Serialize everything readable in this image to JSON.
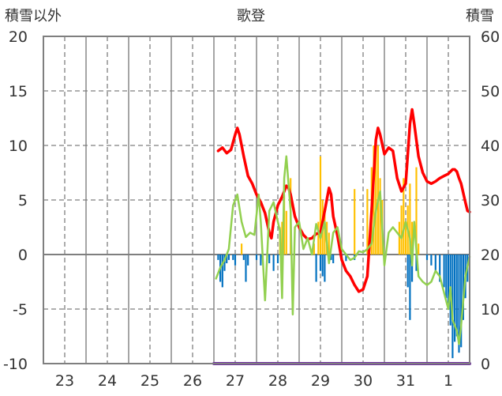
{
  "chart_data": {
    "type": "line",
    "title": "歌登",
    "ylabel_left": "積雪以外",
    "ylabel_right": "積雪",
    "ylim_left": [
      -10,
      20
    ],
    "ylim_right": [
      0,
      60
    ],
    "yticks_left": [
      "20",
      "15",
      "10",
      "5",
      "0",
      "-5",
      "-10"
    ],
    "yticks_right": [
      "60",
      "50",
      "40",
      "30",
      "20",
      "10",
      "0"
    ],
    "x_range": [
      0,
      10
    ],
    "day_ticks": [
      {
        "label": "23",
        "x": 0.5
      },
      {
        "label": "24",
        "x": 1.5
      },
      {
        "label": "25",
        "x": 2.5
      },
      {
        "label": "26",
        "x": 3.5
      },
      {
        "label": "27",
        "x": 4.5
      },
      {
        "label": "28",
        "x": 5.5
      },
      {
        "label": "29",
        "x": 6.5
      },
      {
        "label": "30",
        "x": 7.5
      },
      {
        "label": "31",
        "x": 8.5
      },
      {
        "label": "1",
        "x": 9.5
      }
    ],
    "solid_gridlines_x": [
      1,
      2,
      3,
      4,
      5,
      6,
      7,
      8,
      9
    ],
    "dashed_gridlines_x": [
      0.5,
      1.5,
      2.5,
      3.5,
      4.5,
      5.5,
      6.5,
      7.5,
      8.5,
      9.5
    ],
    "dashed_gridlines_y": [
      15,
      10,
      5,
      -5
    ],
    "colors": {
      "frame": "#7f7f7f",
      "grid": "#7f7f7f",
      "red_line": "#ff0000",
      "green_line": "#92d050",
      "orange_bars": "#ffc000",
      "blue_bars": "#0070c0",
      "purple_line": "#7030a0"
    },
    "series": [
      {
        "kind": "line",
        "color": "red_line",
        "axis": "left",
        "points": [
          [
            4.1,
            9.5
          ],
          [
            4.2,
            9.8
          ],
          [
            4.3,
            9.3
          ],
          [
            4.4,
            9.6
          ],
          [
            4.5,
            11.0
          ],
          [
            4.55,
            11.6
          ],
          [
            4.6,
            11.0
          ],
          [
            4.7,
            9.0
          ],
          [
            4.8,
            7.2
          ],
          [
            4.9,
            6.5
          ],
          [
            5.0,
            5.5
          ],
          [
            5.1,
            4.8
          ],
          [
            5.2,
            3.8
          ],
          [
            5.3,
            2.0
          ],
          [
            5.35,
            1.5
          ],
          [
            5.4,
            3.0
          ],
          [
            5.5,
            4.5
          ],
          [
            5.6,
            5.3
          ],
          [
            5.7,
            6.3
          ],
          [
            5.75,
            6.1
          ],
          [
            5.8,
            5.5
          ],
          [
            5.9,
            3.5
          ],
          [
            6.0,
            2.5
          ],
          [
            6.1,
            1.8
          ],
          [
            6.2,
            1.4
          ],
          [
            6.3,
            1.5
          ],
          [
            6.4,
            1.9
          ],
          [
            6.5,
            2.0
          ],
          [
            6.6,
            4.0
          ],
          [
            6.7,
            6.1
          ],
          [
            6.75,
            5.5
          ],
          [
            6.8,
            3.5
          ],
          [
            6.9,
            1.7
          ],
          [
            7.0,
            -0.5
          ],
          [
            7.1,
            -1.5
          ],
          [
            7.2,
            -2.0
          ],
          [
            7.3,
            -2.8
          ],
          [
            7.4,
            -3.4
          ],
          [
            7.5,
            -3.2
          ],
          [
            7.6,
            -2.0
          ],
          [
            7.7,
            4.0
          ],
          [
            7.8,
            10.5
          ],
          [
            7.85,
            11.6
          ],
          [
            7.9,
            11.0
          ],
          [
            8.0,
            9.2
          ],
          [
            8.1,
            9.8
          ],
          [
            8.2,
            9.5
          ],
          [
            8.3,
            7.0
          ],
          [
            8.4,
            5.8
          ],
          [
            8.5,
            6.5
          ],
          [
            8.6,
            12.0
          ],
          [
            8.65,
            13.3
          ],
          [
            8.7,
            12.0
          ],
          [
            8.8,
            9.0
          ],
          [
            8.9,
            7.5
          ],
          [
            9.0,
            6.7
          ],
          [
            9.1,
            6.5
          ],
          [
            9.2,
            6.7
          ],
          [
            9.3,
            7.0
          ],
          [
            9.4,
            7.2
          ],
          [
            9.5,
            7.4
          ],
          [
            9.6,
            7.8
          ],
          [
            9.65,
            7.8
          ],
          [
            9.7,
            7.6
          ],
          [
            9.75,
            7.0
          ],
          [
            9.8,
            6.5
          ],
          [
            9.9,
            4.8
          ],
          [
            9.95,
            4.0
          ],
          [
            10.0,
            3.9
          ]
        ]
      },
      {
        "kind": "line",
        "color": "green_line",
        "axis": "left",
        "points": [
          [
            4.05,
            -2.2
          ],
          [
            4.15,
            -1.2
          ],
          [
            4.25,
            -0.5
          ],
          [
            4.35,
            0.5
          ],
          [
            4.45,
            4.5
          ],
          [
            4.55,
            5.5
          ],
          [
            4.65,
            3.0
          ],
          [
            4.75,
            1.6
          ],
          [
            4.85,
            2.0
          ],
          [
            4.95,
            1.8
          ],
          [
            5.05,
            5.5
          ],
          [
            5.1,
            3.0
          ],
          [
            5.2,
            -4.2
          ],
          [
            5.3,
            4.0
          ],
          [
            5.4,
            4.8
          ],
          [
            5.5,
            3.0
          ],
          [
            5.55,
            2.2
          ],
          [
            5.6,
            -4.0
          ],
          [
            5.65,
            7.0
          ],
          [
            5.7,
            9.0
          ],
          [
            5.8,
            4.0
          ],
          [
            5.85,
            -5.5
          ],
          [
            5.9,
            2.5
          ],
          [
            6.0,
            3.0
          ],
          [
            6.1,
            0.5
          ],
          [
            6.2,
            1.5
          ],
          [
            6.3,
            0.0
          ],
          [
            6.4,
            2.8
          ],
          [
            6.5,
            1.5
          ],
          [
            6.6,
            3.0
          ],
          [
            6.7,
            -0.8
          ],
          [
            6.8,
            2.0
          ],
          [
            6.9,
            2.5
          ],
          [
            7.0,
            0.5
          ],
          [
            7.1,
            0.0
          ],
          [
            7.2,
            -0.5
          ],
          [
            7.3,
            -0.3
          ],
          [
            7.4,
            0.3
          ],
          [
            7.5,
            0.2
          ],
          [
            7.6,
            0.5
          ],
          [
            7.7,
            1.0
          ],
          [
            7.8,
            4.0
          ],
          [
            7.9,
            5.8
          ],
          [
            8.0,
            -1.0
          ],
          [
            8.1,
            2.0
          ],
          [
            8.2,
            2.5
          ],
          [
            8.3,
            2.0
          ],
          [
            8.4,
            1.5
          ],
          [
            8.5,
            3.0
          ],
          [
            8.6,
            1.5
          ],
          [
            8.65,
            -1.0
          ],
          [
            8.7,
            3.0
          ],
          [
            8.8,
            -2.0
          ],
          [
            8.9,
            -2.5
          ],
          [
            9.0,
            -2.8
          ],
          [
            9.1,
            -2.5
          ],
          [
            9.2,
            -1.5
          ],
          [
            9.3,
            -2.0
          ],
          [
            9.4,
            -3.5
          ],
          [
            9.5,
            -5.0
          ],
          [
            9.55,
            -3.0
          ],
          [
            9.6,
            -6.0
          ],
          [
            9.7,
            -7.0
          ],
          [
            9.75,
            -8.2
          ],
          [
            9.8,
            -6.5
          ],
          [
            9.9,
            -2.0
          ],
          [
            10.0,
            -0.2
          ]
        ]
      },
      {
        "kind": "bars",
        "color": "orange_bars",
        "axis": "left",
        "width": 0.04,
        "points": [
          [
            4.65,
            1.0
          ],
          [
            5.55,
            2.5
          ],
          [
            5.6,
            3.0
          ],
          [
            5.65,
            5.5
          ],
          [
            5.7,
            4.0
          ],
          [
            5.8,
            7.0
          ],
          [
            6.35,
            1.0
          ],
          [
            6.45,
            3.0
          ],
          [
            6.5,
            9.0
          ],
          [
            6.55,
            5.0
          ],
          [
            6.6,
            4.0
          ],
          [
            6.65,
            3.0
          ],
          [
            6.7,
            2.0
          ],
          [
            7.3,
            6.0
          ],
          [
            7.6,
            6.0
          ],
          [
            7.7,
            8.0
          ],
          [
            7.75,
            10.0
          ],
          [
            7.8,
            10.0
          ],
          [
            7.85,
            10.0
          ],
          [
            7.9,
            7.0
          ],
          [
            7.95,
            5.0
          ],
          [
            8.35,
            3.0
          ],
          [
            8.4,
            4.5
          ],
          [
            8.45,
            7.0
          ],
          [
            8.5,
            3.0
          ],
          [
            8.55,
            4.5
          ],
          [
            8.6,
            6.5
          ],
          [
            8.65,
            3.0
          ],
          [
            8.75,
            8.0
          ],
          [
            8.8,
            1.0
          ]
        ]
      },
      {
        "kind": "bars",
        "color": "blue_bars",
        "axis": "left",
        "width": 0.04,
        "points": [
          [
            4.1,
            -0.5
          ],
          [
            4.15,
            -2.5
          ],
          [
            4.2,
            -3.0
          ],
          [
            4.25,
            -1.5
          ],
          [
            4.3,
            -0.8
          ],
          [
            4.35,
            -0.5
          ],
          [
            4.45,
            -0.5
          ],
          [
            4.5,
            -1.0
          ],
          [
            4.7,
            -0.5
          ],
          [
            4.75,
            -2.5
          ],
          [
            4.8,
            -1.0
          ],
          [
            5.0,
            -0.5
          ],
          [
            5.1,
            -1.0
          ],
          [
            5.3,
            -0.8
          ],
          [
            5.4,
            -1.5
          ],
          [
            5.5,
            -0.8
          ],
          [
            6.4,
            -2.5
          ],
          [
            6.5,
            -1.5
          ],
          [
            6.55,
            -2.0
          ],
          [
            6.6,
            -2.5
          ],
          [
            6.7,
            -0.8
          ],
          [
            6.75,
            -0.5
          ],
          [
            6.8,
            -0.8
          ],
          [
            7.0,
            -0.5
          ],
          [
            7.1,
            -0.6
          ],
          [
            7.3,
            -0.5
          ],
          [
            8.55,
            -3.0
          ],
          [
            8.6,
            -6.0
          ],
          [
            8.65,
            -2.5
          ],
          [
            8.75,
            -1.5
          ],
          [
            9.0,
            -0.5
          ],
          [
            9.1,
            -1.0
          ],
          [
            9.2,
            -1.5
          ],
          [
            9.3,
            -2.5
          ],
          [
            9.4,
            -3.0
          ],
          [
            9.45,
            -4.0
          ],
          [
            9.5,
            -5.0
          ],
          [
            9.55,
            -6.5
          ],
          [
            9.6,
            -9.5
          ],
          [
            9.65,
            -8.0
          ],
          [
            9.7,
            -7.5
          ],
          [
            9.75,
            -9.0
          ],
          [
            9.8,
            -8.5
          ],
          [
            9.85,
            -6.0
          ],
          [
            9.9,
            -4.0
          ],
          [
            9.95,
            -2.5
          ]
        ]
      },
      {
        "kind": "line",
        "color": "purple_line",
        "axis": "left",
        "points": [
          [
            4.0,
            -10.0
          ],
          [
            10.0,
            -10.0
          ]
        ]
      }
    ]
  }
}
